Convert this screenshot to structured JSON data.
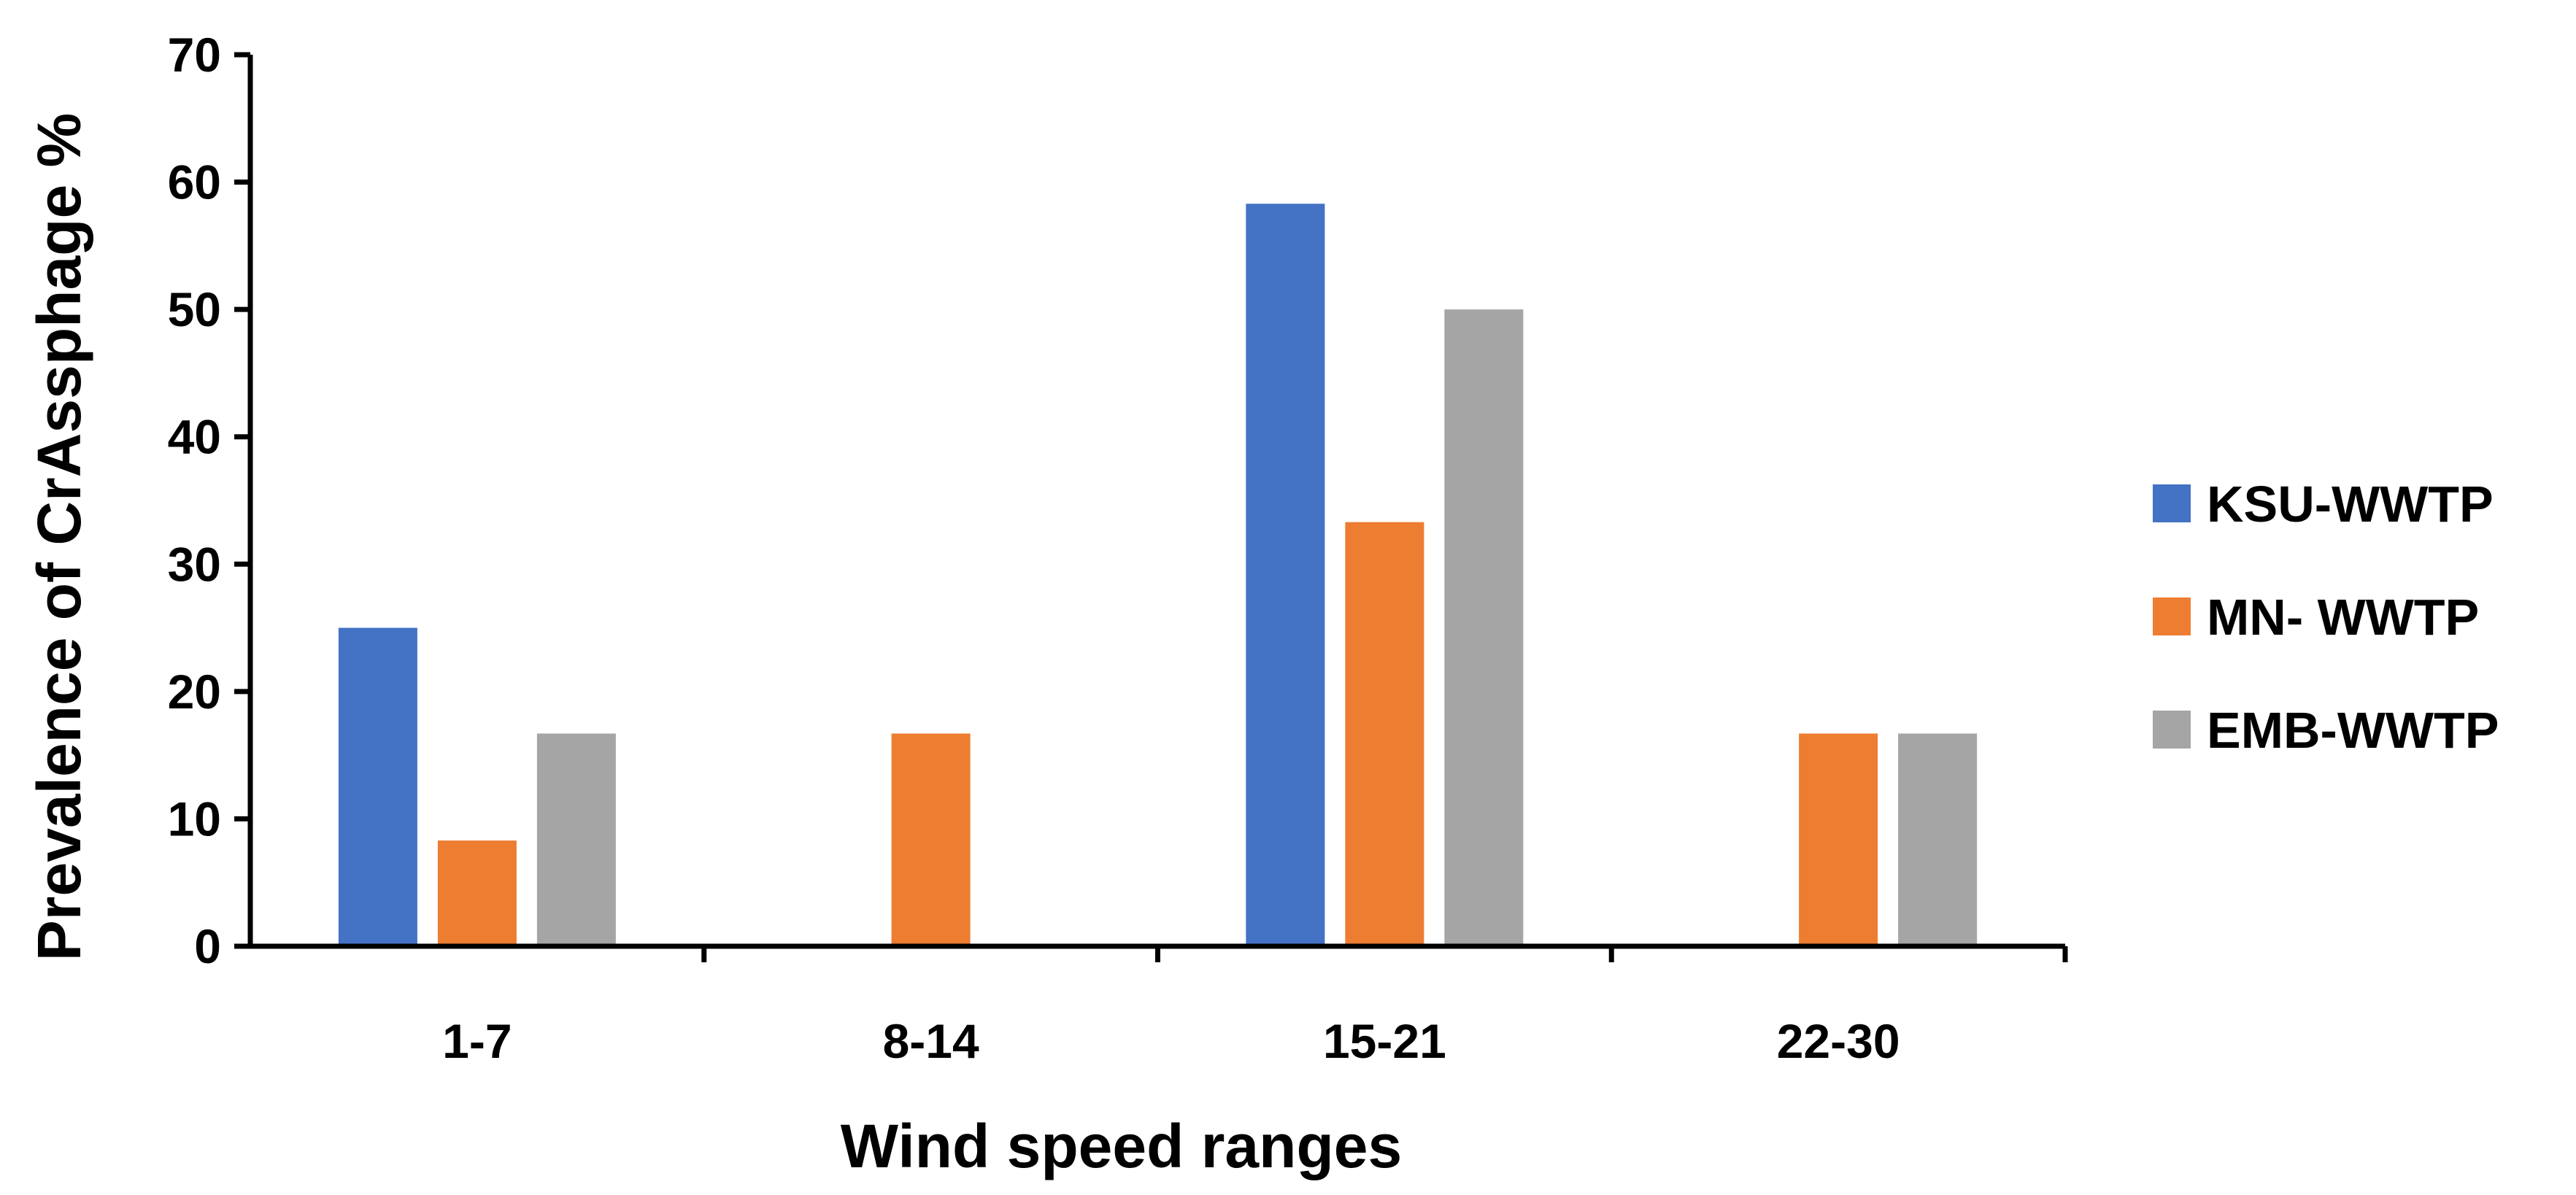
{
  "chart_data": {
    "type": "bar",
    "title": "",
    "xlabel": "Wind speed ranges",
    "ylabel": "Prevalence of CrAssphage %",
    "categories": [
      "1-7",
      "8-14",
      "15-21",
      "22-30"
    ],
    "ylim": [
      0,
      70
    ],
    "yticks": [
      "0",
      "10",
      "20",
      "30",
      "40",
      "50",
      "60",
      "70"
    ],
    "grid": false,
    "legend_position": "right",
    "series": [
      {
        "name": "KSU-WWTP",
        "color": "#4472C4",
        "values": [
          25,
          0,
          58.3,
          0
        ]
      },
      {
        "name": "MN- WWTP",
        "color": "#ED7D31",
        "values": [
          8.3,
          16.7,
          33.3,
          16.7
        ]
      },
      {
        "name": "EMB-WWTP",
        "color": "#A5A5A5",
        "values": [
          16.7,
          0,
          50,
          16.7
        ]
      }
    ]
  }
}
